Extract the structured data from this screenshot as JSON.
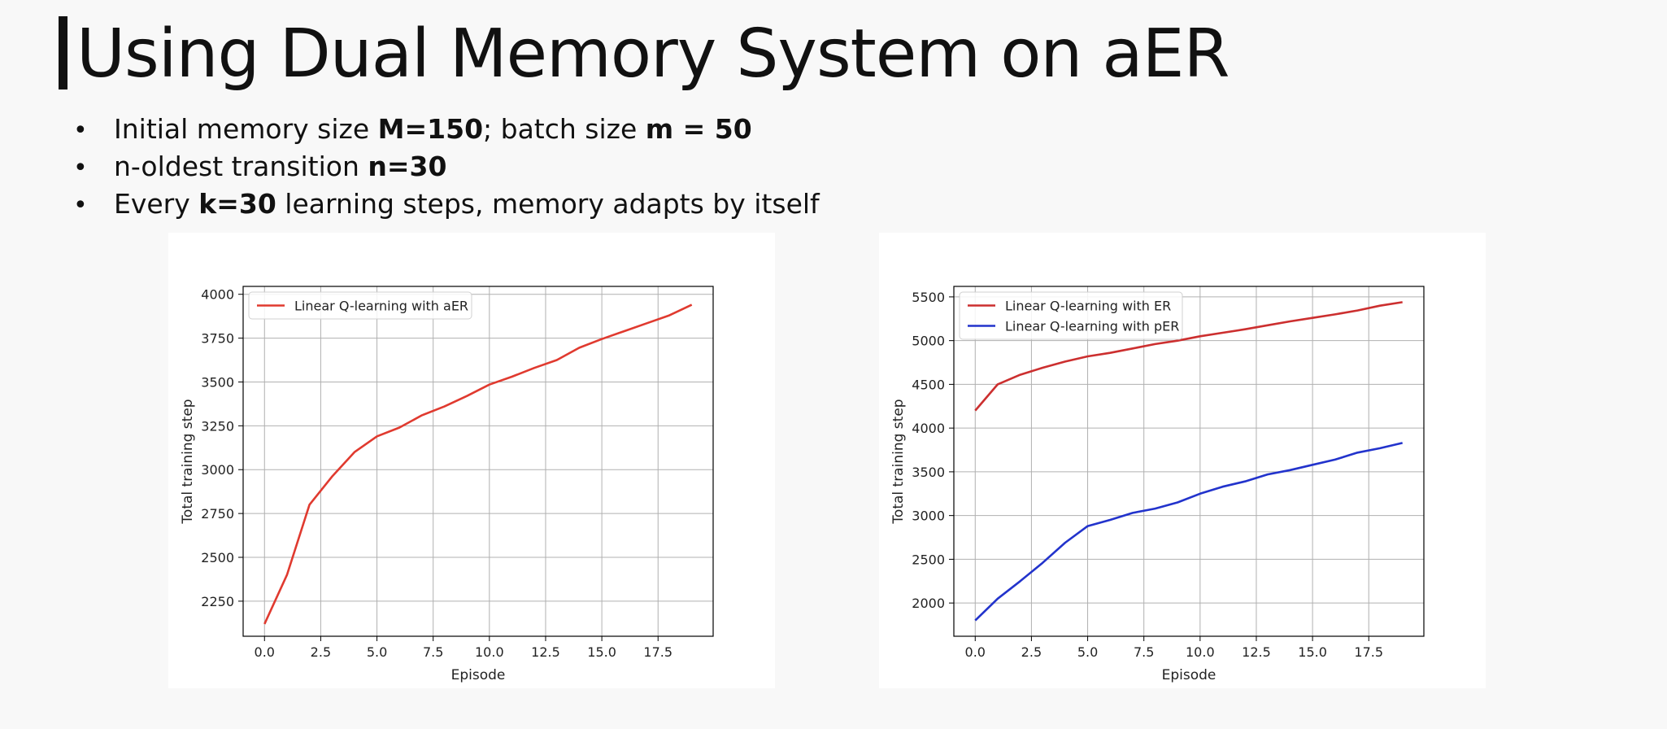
{
  "slide": {
    "title": "Using Dual Memory System on aER",
    "bullets": [
      {
        "pre": "Initial memory size ",
        "b1": "M=150",
        "mid": "; batch size ",
        "b2": "m = 50",
        "post": ""
      },
      {
        "pre": "n-oldest transition ",
        "b1": "n=30",
        "mid": "",
        "b2": "",
        "post": ""
      },
      {
        "pre": "Every ",
        "b1": "k=30",
        "mid": " learning steps, memory adapts by itself",
        "b2": "",
        "post": ""
      }
    ]
  },
  "chart_data": [
    {
      "type": "line",
      "xlabel": "Episode",
      "ylabel": "Total training step",
      "xlim": [
        -0.95,
        19.95
      ],
      "ylim": [
        2050,
        4045
      ],
      "xticks": [
        0.0,
        2.5,
        5.0,
        7.5,
        10.0,
        12.5,
        15.0,
        17.5
      ],
      "xtick_labels": [
        "0.0",
        "2.5",
        "5.0",
        "7.5",
        "10.0",
        "12.5",
        "15.0",
        "17.5"
      ],
      "yticks": [
        2250,
        2500,
        2750,
        3000,
        3250,
        3500,
        3750,
        4000
      ],
      "ytick_labels": [
        "2250",
        "2500",
        "2750",
        "3000",
        "3250",
        "3500",
        "3750",
        "4000"
      ],
      "grid": true,
      "legend_position": "top-left",
      "series": [
        {
          "name": "Linear Q-learning with aER",
          "color": "#e03a2f",
          "x": [
            0,
            1,
            2,
            3,
            4,
            5,
            6,
            7,
            8,
            9,
            10,
            11,
            12,
            13,
            14,
            15,
            16,
            17,
            18,
            19
          ],
          "y": [
            2120,
            2400,
            2800,
            2960,
            3100,
            3190,
            3240,
            3310,
            3360,
            3420,
            3485,
            3530,
            3580,
            3625,
            3695,
            3745,
            3790,
            3835,
            3880,
            3940
          ]
        }
      ]
    },
    {
      "type": "line",
      "xlabel": "Episode",
      "ylabel": "Total training step",
      "xlim": [
        -0.95,
        19.95
      ],
      "ylim": [
        1620,
        5620
      ],
      "xticks": [
        0.0,
        2.5,
        5.0,
        7.5,
        10.0,
        12.5,
        15.0,
        17.5
      ],
      "xtick_labels": [
        "0.0",
        "2.5",
        "5.0",
        "7.5",
        "10.0",
        "12.5",
        "15.0",
        "17.5"
      ],
      "yticks": [
        2000,
        2500,
        3000,
        3500,
        4000,
        4500,
        5000,
        5500
      ],
      "ytick_labels": [
        "2000",
        "2500",
        "3000",
        "3500",
        "4000",
        "4500",
        "5000",
        "5500"
      ],
      "grid": true,
      "legend_position": "top-left",
      "series": [
        {
          "name": "Linear Q-learning with ER",
          "color": "#cc2f2f",
          "x": [
            0,
            1,
            2,
            3,
            4,
            5,
            6,
            7,
            8,
            9,
            10,
            11,
            12,
            13,
            14,
            15,
            16,
            17,
            18,
            19
          ],
          "y": [
            4200,
            4500,
            4610,
            4690,
            4760,
            4820,
            4860,
            4910,
            4960,
            5000,
            5050,
            5090,
            5130,
            5175,
            5220,
            5260,
            5300,
            5345,
            5400,
            5440
          ]
        },
        {
          "name": "Linear Q-learning with pER",
          "color": "#2233cc",
          "x": [
            0,
            1,
            2,
            3,
            4,
            5,
            6,
            7,
            8,
            9,
            10,
            11,
            12,
            13,
            14,
            15,
            16,
            17,
            18,
            19
          ],
          "y": [
            1800,
            2050,
            2250,
            2460,
            2690,
            2880,
            2950,
            3030,
            3080,
            3150,
            3250,
            3330,
            3390,
            3470,
            3520,
            3580,
            3640,
            3720,
            3770,
            3830
          ]
        }
      ]
    }
  ]
}
